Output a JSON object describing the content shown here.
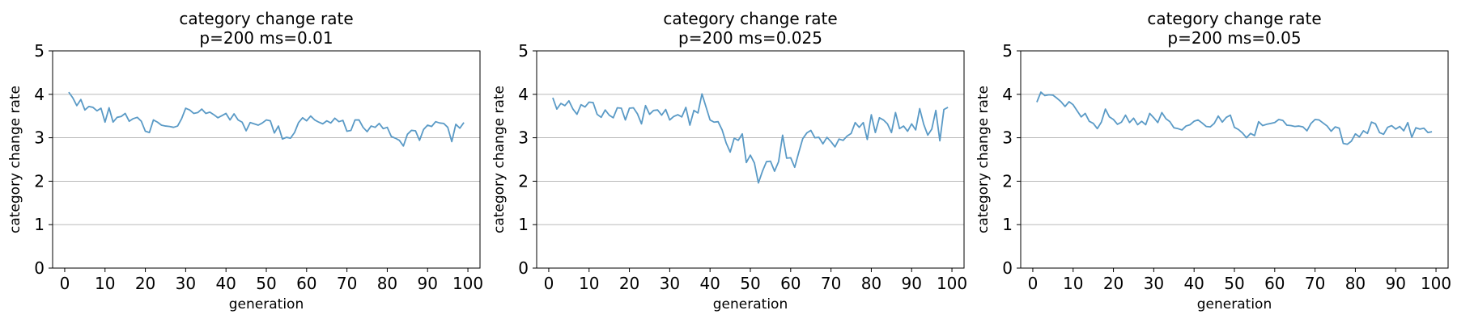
{
  "chart_data": [
    {
      "type": "line",
      "title": "category change rate",
      "subtitle": "p=200 ms=0.01",
      "xlabel": "generation",
      "ylabel": "category change rate",
      "xlim": [
        -3,
        103
      ],
      "ylim": [
        0,
        5
      ],
      "xticks": [
        0,
        10,
        20,
        30,
        40,
        50,
        60,
        70,
        80,
        90,
        100
      ],
      "yticks": [
        0,
        1,
        2,
        3,
        4,
        5
      ],
      "grid": "y",
      "line_color": "#5a9ac6",
      "series": [
        {
          "x": [
            1,
            2,
            3,
            4,
            5,
            6,
            7,
            8,
            9,
            10,
            11,
            12,
            13,
            14,
            15,
            16,
            17,
            18,
            19,
            20,
            21,
            22,
            23,
            24,
            25,
            26,
            27,
            28,
            29,
            30,
            31,
            32,
            33,
            34,
            35,
            36,
            37,
            38,
            39,
            40,
            41,
            42,
            43,
            44,
            45,
            46,
            47,
            48,
            49,
            50,
            51,
            52,
            53,
            54,
            55,
            56,
            57,
            58,
            59,
            60,
            61,
            62,
            63,
            64,
            65,
            66,
            67,
            68,
            69,
            70,
            71,
            72,
            73,
            74,
            75,
            76,
            77,
            78,
            79,
            80,
            81,
            82,
            83,
            84,
            85,
            86,
            87,
            88,
            89,
            90,
            91,
            92,
            93,
            94,
            95,
            96,
            97,
            98,
            99
          ],
          "values": [
            4.05,
            3.92,
            3.74,
            3.88,
            3.64,
            3.72,
            3.7,
            3.62,
            3.68,
            3.36,
            3.69,
            3.36,
            3.47,
            3.49,
            3.56,
            3.38,
            3.44,
            3.47,
            3.38,
            3.15,
            3.12,
            3.41,
            3.36,
            3.29,
            3.27,
            3.26,
            3.24,
            3.27,
            3.44,
            3.68,
            3.64,
            3.56,
            3.58,
            3.66,
            3.56,
            3.59,
            3.53,
            3.46,
            3.51,
            3.56,
            3.41,
            3.55,
            3.41,
            3.36,
            3.16,
            3.35,
            3.32,
            3.29,
            3.34,
            3.41,
            3.39,
            3.11,
            3.27,
            2.97,
            3.01,
            2.99,
            3.12,
            3.35,
            3.46,
            3.39,
            3.5,
            3.41,
            3.36,
            3.32,
            3.39,
            3.34,
            3.45,
            3.37,
            3.4,
            3.15,
            3.17,
            3.41,
            3.41,
            3.24,
            3.14,
            3.27,
            3.24,
            3.33,
            3.21,
            3.24,
            3.03,
            2.99,
            2.94,
            2.81,
            3.08,
            3.17,
            3.16,
            2.94,
            3.19,
            3.29,
            3.26,
            3.37,
            3.34,
            3.33,
            3.24,
            2.91,
            3.31,
            3.22,
            3.35
          ]
        }
      ]
    },
    {
      "type": "line",
      "title": "category change rate",
      "subtitle": "p=200 ms=0.025",
      "xlabel": "generation",
      "ylabel": "category change rate",
      "xlim": [
        -3,
        103
      ],
      "ylim": [
        0,
        5
      ],
      "xticks": [
        0,
        10,
        20,
        30,
        40,
        50,
        60,
        70,
        80,
        90,
        100
      ],
      "yticks": [
        0,
        1,
        2,
        3,
        4,
        5
      ],
      "grid": "y",
      "line_color": "#5a9ac6",
      "series": [
        {
          "x": [
            1,
            2,
            3,
            4,
            5,
            6,
            7,
            8,
            9,
            10,
            11,
            12,
            13,
            14,
            15,
            16,
            17,
            18,
            19,
            20,
            21,
            22,
            23,
            24,
            25,
            26,
            27,
            28,
            29,
            30,
            31,
            32,
            33,
            34,
            35,
            36,
            37,
            38,
            39,
            40,
            41,
            42,
            43,
            44,
            45,
            46,
            47,
            48,
            49,
            50,
            51,
            52,
            53,
            54,
            55,
            56,
            57,
            58,
            59,
            60,
            61,
            62,
            63,
            64,
            65,
            66,
            67,
            68,
            69,
            70,
            71,
            72,
            73,
            74,
            75,
            76,
            77,
            78,
            79,
            80,
            81,
            82,
            83,
            84,
            85,
            86,
            87,
            88,
            89,
            90,
            91,
            92,
            93,
            94,
            95,
            96,
            97,
            98,
            99
          ],
          "values": [
            3.92,
            3.66,
            3.79,
            3.74,
            3.85,
            3.66,
            3.54,
            3.76,
            3.71,
            3.82,
            3.81,
            3.54,
            3.47,
            3.64,
            3.52,
            3.46,
            3.69,
            3.68,
            3.41,
            3.68,
            3.69,
            3.55,
            3.32,
            3.74,
            3.54,
            3.63,
            3.64,
            3.52,
            3.65,
            3.41,
            3.49,
            3.53,
            3.48,
            3.7,
            3.29,
            3.63,
            3.57,
            4.01,
            3.71,
            3.41,
            3.36,
            3.37,
            3.18,
            2.88,
            2.67,
            2.99,
            2.94,
            3.09,
            2.43,
            2.6,
            2.42,
            1.96,
            2.23,
            2.45,
            2.46,
            2.23,
            2.45,
            3.06,
            2.53,
            2.54,
            2.32,
            2.66,
            2.98,
            3.11,
            3.17,
            3.0,
            3.01,
            2.86,
            3.01,
            2.91,
            2.79,
            2.97,
            2.94,
            3.04,
            3.1,
            3.35,
            3.24,
            3.35,
            2.96,
            3.53,
            3.12,
            3.46,
            3.41,
            3.32,
            3.12,
            3.58,
            3.21,
            3.27,
            3.15,
            3.32,
            3.18,
            3.67,
            3.31,
            3.06,
            3.2,
            3.63,
            2.93,
            3.65,
            3.7
          ]
        }
      ]
    },
    {
      "type": "line",
      "title": "category change rate",
      "subtitle": "p=200 ms=0.05",
      "xlabel": "generation",
      "ylabel": "category change rate",
      "xlim": [
        -3,
        103
      ],
      "ylim": [
        0,
        5
      ],
      "xticks": [
        0,
        10,
        20,
        30,
        40,
        50,
        60,
        70,
        80,
        90,
        100
      ],
      "yticks": [
        0,
        1,
        2,
        3,
        4,
        5
      ],
      "grid": "y",
      "line_color": "#5a9ac6",
      "series": [
        {
          "x": [
            1,
            2,
            3,
            4,
            5,
            6,
            7,
            8,
            9,
            10,
            11,
            12,
            13,
            14,
            15,
            16,
            17,
            18,
            19,
            20,
            21,
            22,
            23,
            24,
            25,
            26,
            27,
            28,
            29,
            30,
            31,
            32,
            33,
            34,
            35,
            36,
            37,
            38,
            39,
            40,
            41,
            42,
            43,
            44,
            45,
            46,
            47,
            48,
            49,
            50,
            51,
            52,
            53,
            54,
            55,
            56,
            57,
            58,
            59,
            60,
            61,
            62,
            63,
            64,
            65,
            66,
            67,
            68,
            69,
            70,
            71,
            72,
            73,
            74,
            75,
            76,
            77,
            78,
            79,
            80,
            81,
            82,
            83,
            84,
            85,
            86,
            87,
            88,
            89,
            90,
            91,
            92,
            93,
            94,
            95,
            96,
            97,
            98,
            99
          ],
          "values": [
            3.82,
            4.05,
            3.97,
            3.99,
            3.98,
            3.91,
            3.83,
            3.72,
            3.83,
            3.76,
            3.62,
            3.48,
            3.56,
            3.38,
            3.33,
            3.21,
            3.36,
            3.66,
            3.48,
            3.42,
            3.31,
            3.36,
            3.52,
            3.35,
            3.45,
            3.3,
            3.38,
            3.3,
            3.56,
            3.46,
            3.35,
            3.58,
            3.44,
            3.37,
            3.23,
            3.21,
            3.18,
            3.27,
            3.3,
            3.38,
            3.41,
            3.34,
            3.26,
            3.25,
            3.33,
            3.5,
            3.36,
            3.47,
            3.52,
            3.24,
            3.19,
            3.11,
            3.0,
            3.1,
            3.05,
            3.37,
            3.28,
            3.31,
            3.33,
            3.35,
            3.42,
            3.4,
            3.29,
            3.28,
            3.26,
            3.27,
            3.25,
            3.16,
            3.33,
            3.42,
            3.41,
            3.34,
            3.27,
            3.15,
            3.25,
            3.22,
            2.87,
            2.85,
            2.92,
            3.09,
            3.02,
            3.16,
            3.1,
            3.36,
            3.32,
            3.12,
            3.08,
            3.24,
            3.28,
            3.2,
            3.26,
            3.16,
            3.35,
            3.01,
            3.23,
            3.2,
            3.22,
            3.12,
            3.14
          ]
        }
      ]
    }
  ]
}
